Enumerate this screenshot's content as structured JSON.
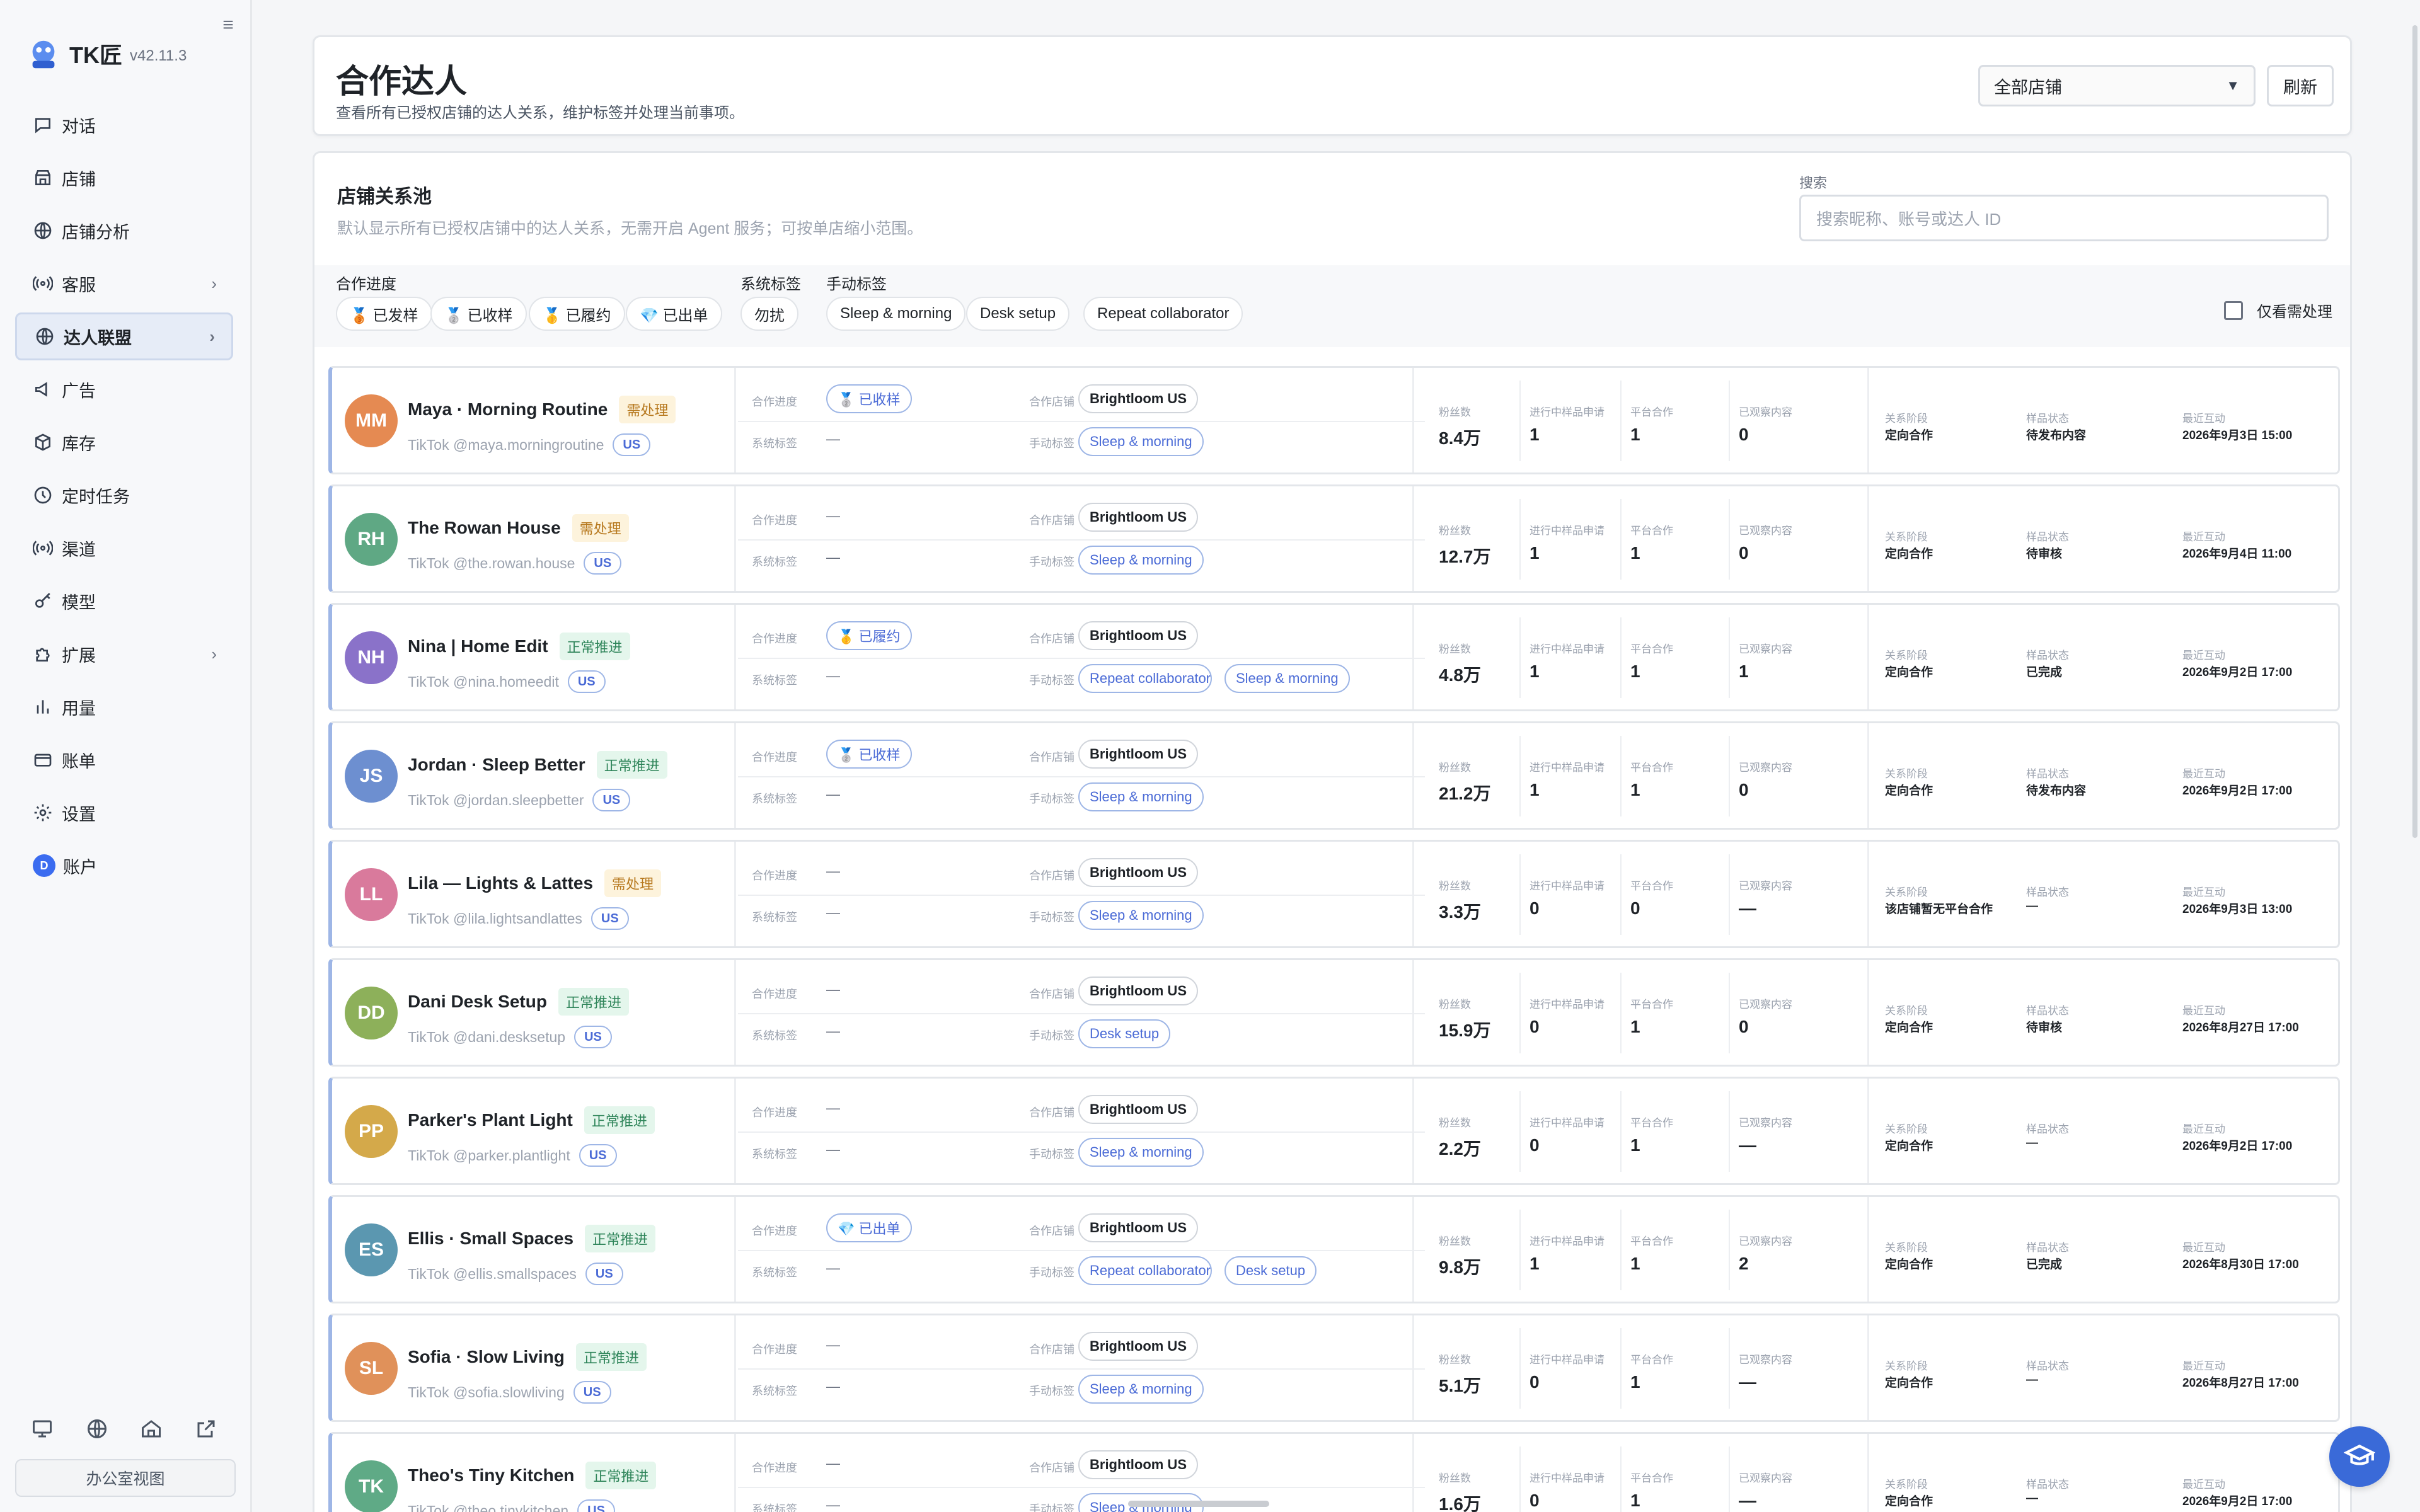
{
  "app": {
    "name": "TK匠",
    "version": "v42.11.3"
  },
  "sidebar": {
    "items": [
      {
        "label": "对话",
        "icon": "chat-icon"
      },
      {
        "label": "店铺",
        "icon": "store-icon"
      },
      {
        "label": "店铺分析",
        "icon": "globe-icon"
      },
      {
        "label": "客服",
        "icon": "broadcast-icon"
      },
      {
        "label": "达人联盟",
        "icon": "globe-icon"
      },
      {
        "label": "广告",
        "icon": "megaphone-icon"
      },
      {
        "label": "库存",
        "icon": "box-icon"
      },
      {
        "label": "定时任务",
        "icon": "clock-icon"
      },
      {
        "label": "渠道",
        "icon": "broadcast-icon"
      },
      {
        "label": "模型",
        "icon": "key-icon"
      },
      {
        "label": "扩展",
        "icon": "puzzle-icon"
      },
      {
        "label": "用量",
        "icon": "bar-chart-icon"
      },
      {
        "label": "账单",
        "icon": "card-icon"
      },
      {
        "label": "设置",
        "icon": "gear-icon"
      },
      {
        "label": "账户",
        "avatar": "D"
      }
    ],
    "office_view": "办公室视图"
  },
  "header": {
    "title": "合作达人",
    "subtitle": "查看所有已授权店铺的达人关系，维护标签并处理当前事项。",
    "store_select": "全部店铺",
    "refresh": "刷新"
  },
  "pool": {
    "title": "店铺关系池",
    "subtitle": "默认显示所有已授权店铺中的达人关系，无需开启 Agent 服务；可按单店缩小范围。",
    "search_label": "搜索",
    "search_placeholder": "搜索昵称、账号或达人 ID"
  },
  "filters": {
    "progress_label": "合作进度",
    "progress_chips": [
      "🥉 已发样",
      "🥈 已收样",
      "🥇 已履约",
      "💎 已出单"
    ],
    "system_label": "系统标签",
    "system_chips": [
      "勿扰"
    ],
    "manual_label": "手动标签",
    "manual_chips": [
      "Sleep & morning",
      "Desk setup",
      "Repeat collaborator"
    ],
    "only_pending": "仅看需处理"
  },
  "labels": {
    "progress": "合作进度",
    "system_tag": "系统标签",
    "store": "合作店铺",
    "manual_tag": "手动标签",
    "fans": "粉丝数",
    "in_progress": "进行中样品申请",
    "platform": "平台合作",
    "observed": "已观察内容",
    "stage": "关系阶段",
    "sample_status": "样品状态",
    "last": "最近互动",
    "dash": "—"
  },
  "creators": [
    {
      "initials": "MM",
      "color": "#e58a52",
      "name": "Maya · Morning Routine",
      "status": "需处理",
      "status_type": "warn",
      "platform": "TikTok",
      "handle": "@maya.morningroutine",
      "region": "US",
      "progress": "🥈 已收样",
      "system_tag": "—",
      "store": "Brightloom US",
      "tags": [
        "Sleep & morning"
      ],
      "fans": "8.4万",
      "in_progress": "1",
      "platform_coop": "1",
      "observed": "0",
      "stage": "定向合作",
      "sample_status": "待发布内容",
      "last": "2026年9月3日 15:00"
    },
    {
      "initials": "RH",
      "color": "#5fa884",
      "name": "The Rowan House",
      "status": "需处理",
      "status_type": "warn",
      "platform": "TikTok",
      "handle": "@the.rowan.house",
      "region": "US",
      "progress": "—",
      "system_tag": "—",
      "store": "Brightloom US",
      "tags": [
        "Sleep & morning"
      ],
      "fans": "12.7万",
      "in_progress": "1",
      "platform_coop": "1",
      "observed": "0",
      "stage": "定向合作",
      "sample_status": "待审核",
      "last": "2026年9月4日 11:00"
    },
    {
      "initials": "NH",
      "color": "#8a72c9",
      "name": "Nina | Home Edit",
      "status": "正常推进",
      "status_type": "ok",
      "platform": "TikTok",
      "handle": "@nina.homeedit",
      "region": "US",
      "progress": "🥇 已履约",
      "system_tag": "—",
      "store": "Brightloom US",
      "tags": [
        "Repeat collaborator",
        "Sleep & morning"
      ],
      "fans": "4.8万",
      "in_progress": "1",
      "platform_coop": "1",
      "observed": "1",
      "stage": "定向合作",
      "sample_status": "已完成",
      "last": "2026年9月2日 17:00"
    },
    {
      "initials": "JS",
      "color": "#6d8fd0",
      "name": "Jordan · Sleep Better",
      "status": "正常推进",
      "status_type": "ok",
      "platform": "TikTok",
      "handle": "@jordan.sleepbetter",
      "region": "US",
      "progress": "🥈 已收样",
      "system_tag": "—",
      "store": "Brightloom US",
      "tags": [
        "Sleep & morning"
      ],
      "fans": "21.2万",
      "in_progress": "1",
      "platform_coop": "1",
      "observed": "0",
      "stage": "定向合作",
      "sample_status": "待发布内容",
      "last": "2026年9月2日 17:00"
    },
    {
      "initials": "LL",
      "color": "#d97a9c",
      "name": "Lila — Lights & Lattes",
      "status": "需处理",
      "status_type": "warn",
      "platform": "TikTok",
      "handle": "@lila.lightsandlattes",
      "region": "US",
      "progress": "—",
      "system_tag": "—",
      "store": "Brightloom US",
      "tags": [
        "Sleep & morning"
      ],
      "fans": "3.3万",
      "in_progress": "0",
      "platform_coop": "0",
      "observed": "—",
      "stage": "该店铺暂无平台合作",
      "sample_status": "—",
      "last": "2026年9月3日 13:00"
    },
    {
      "initials": "DD",
      "color": "#8db05a",
      "name": "Dani Desk Setup",
      "status": "正常推进",
      "status_type": "ok",
      "platform": "TikTok",
      "handle": "@dani.desksetup",
      "region": "US",
      "progress": "—",
      "system_tag": "—",
      "store": "Brightloom US",
      "tags": [
        "Desk setup"
      ],
      "fans": "15.9万",
      "in_progress": "0",
      "platform_coop": "1",
      "observed": "0",
      "stage": "定向合作",
      "sample_status": "待审核",
      "last": "2026年8月27日 17:00"
    },
    {
      "initials": "PP",
      "color": "#d4a94a",
      "name": "Parker's Plant Light",
      "status": "正常推进",
      "status_type": "ok",
      "platform": "TikTok",
      "handle": "@parker.plantlight",
      "region": "US",
      "progress": "—",
      "system_tag": "—",
      "store": "Brightloom US",
      "tags": [
        "Sleep & morning"
      ],
      "fans": "2.2万",
      "in_progress": "0",
      "platform_coop": "1",
      "observed": "—",
      "stage": "定向合作",
      "sample_status": "—",
      "last": "2026年9月2日 17:00"
    },
    {
      "initials": "ES",
      "color": "#5b97b0",
      "name": "Ellis · Small Spaces",
      "status": "正常推进",
      "status_type": "ok",
      "platform": "TikTok",
      "handle": "@ellis.smallspaces",
      "region": "US",
      "progress": "💎 已出单",
      "system_tag": "—",
      "store": "Brightloom US",
      "tags": [
        "Repeat collaborator",
        "Desk setup"
      ],
      "fans": "9.8万",
      "in_progress": "1",
      "platform_coop": "1",
      "observed": "2",
      "stage": "定向合作",
      "sample_status": "已完成",
      "last": "2026年8月30日 17:00"
    },
    {
      "initials": "SL",
      "color": "#e0915a",
      "name": "Sofia · Slow Living",
      "status": "正常推进",
      "status_type": "ok",
      "platform": "TikTok",
      "handle": "@sofia.slowliving",
      "region": "US",
      "progress": "—",
      "system_tag": "—",
      "store": "Brightloom US",
      "tags": [
        "Sleep & morning"
      ],
      "fans": "5.1万",
      "in_progress": "0",
      "platform_coop": "1",
      "observed": "—",
      "stage": "定向合作",
      "sample_status": "—",
      "last": "2026年8月27日 17:00"
    },
    {
      "initials": "TK",
      "color": "#5faa86",
      "name": "Theo's Tiny Kitchen",
      "status": "正常推进",
      "status_type": "ok",
      "platform": "TikTok",
      "handle": "@theo.tinykitchen",
      "region": "US",
      "progress": "—",
      "system_tag": "—",
      "store": "Brightloom US",
      "tags": [
        "Sleep & morning"
      ],
      "fans": "1.6万",
      "in_progress": "0",
      "platform_coop": "1",
      "observed": "—",
      "stage": "定向合作",
      "sample_status": "—",
      "last": "2026年9月2日 17:00"
    }
  ]
}
